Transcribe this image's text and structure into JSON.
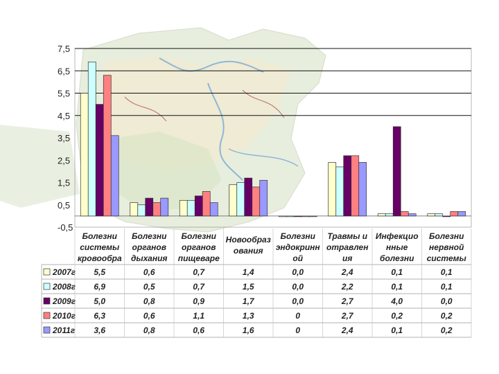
{
  "chart_data": {
    "type": "bar",
    "categories": [
      [
        "Болезни",
        "системы",
        "кровообра"
      ],
      [
        "Болезни",
        "органов",
        "дыхания"
      ],
      [
        "Болезни",
        "органов",
        "пищеваре"
      ],
      [
        "Новообраз",
        "ования"
      ],
      [
        "Болезни",
        "эндокринн",
        "ой"
      ],
      [
        "Травмы и",
        "отравлен",
        "ия"
      ],
      [
        "Инфекцио",
        "нные",
        "болезни"
      ],
      [
        "Болезни",
        "нервной",
        "системы"
      ]
    ],
    "series": [
      {
        "name": "2007г",
        "color": "#ffffcc",
        "values": [
          5.5,
          0.6,
          0.7,
          1.4,
          0.0,
          2.4,
          0.1,
          0.1
        ],
        "labels": [
          "5,5",
          "0,6",
          "0,7",
          "1,4",
          "0,0",
          "2,4",
          "0,1",
          "0,1"
        ]
      },
      {
        "name": "2008г",
        "color": "#ccffff",
        "values": [
          6.9,
          0.5,
          0.7,
          1.5,
          0.0,
          2.2,
          0.1,
          0.1
        ],
        "labels": [
          "6,9",
          "0,5",
          "0,7",
          "1,5",
          "0,0",
          "2,2",
          "0,1",
          "0,1"
        ]
      },
      {
        "name": "2009г",
        "color": "#660066",
        "values": [
          5.0,
          0.8,
          0.9,
          1.7,
          0.0,
          2.7,
          4.0,
          0.0
        ],
        "labels": [
          "5,0",
          "0,8",
          "0,9",
          "1,7",
          "0,0",
          "2,7",
          "4,0",
          "0,0"
        ]
      },
      {
        "name": "2010г",
        "color": "#ff8080",
        "values": [
          6.3,
          0.6,
          1.1,
          1.3,
          0.0,
          2.7,
          0.2,
          0.2
        ],
        "labels": [
          "6,3",
          "0,6",
          "1,1",
          "1,3",
          "0",
          "2,7",
          "0,2",
          "0,2"
        ]
      },
      {
        "name": "2011г",
        "color": "#9999ff",
        "values": [
          3.6,
          0.8,
          0.6,
          1.6,
          0.0,
          2.4,
          0.1,
          0.2
        ],
        "labels": [
          "3,6",
          "0,8",
          "0,6",
          "1,6",
          "0",
          "2,4",
          "0,1",
          "0,2"
        ]
      }
    ],
    "yticks": [
      "7,5",
      "6,5",
      "5,5",
      "4,5",
      "3,5",
      "2,5",
      "1,5",
      "0,5",
      "-0,5"
    ],
    "ylim": [
      -0.5,
      7.5
    ],
    "grid_major": [
      4.5,
      5.5,
      6.5,
      7.5
    ],
    "legend": "table-below"
  }
}
